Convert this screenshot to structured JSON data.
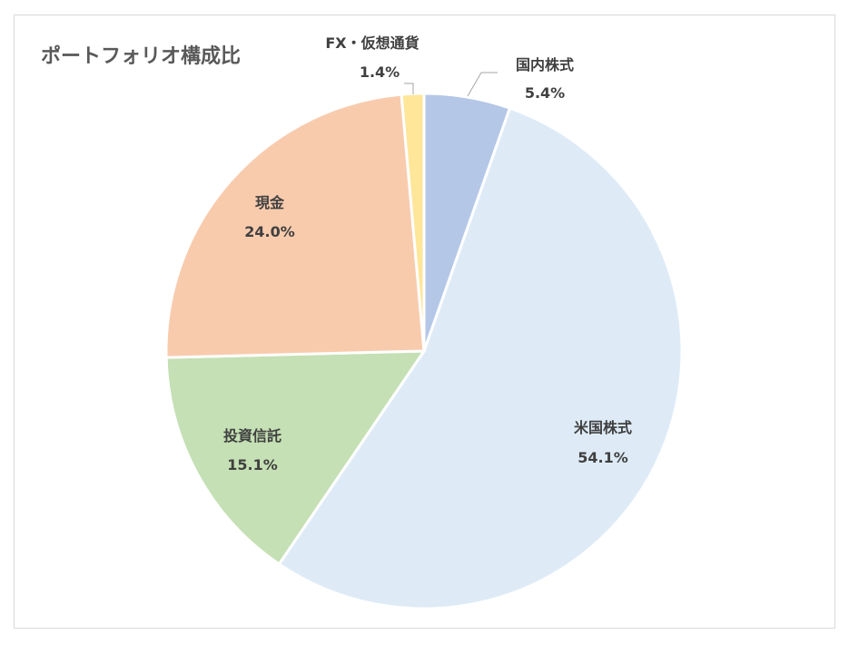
{
  "chart_data": {
    "type": "pie",
    "title": "ポートフォリオ構成比",
    "categories": [
      "国内株式",
      "米国株式",
      "投資信託",
      "現金",
      "FX・仮想通貨"
    ],
    "values": [
      5.4,
      54.1,
      15.1,
      24.0,
      1.4
    ],
    "value_labels": [
      "5.4%",
      "54.1%",
      "15.1%",
      "24.0%",
      "1.4%"
    ],
    "colors": [
      "#b4c7e7",
      "#deebf7",
      "#c5e0b4",
      "#f8cbad",
      "#ffe699"
    ],
    "start_angle": "12 o'clock",
    "direction": "clockwise",
    "legend": "none",
    "data_labels": "category name and percentage"
  }
}
